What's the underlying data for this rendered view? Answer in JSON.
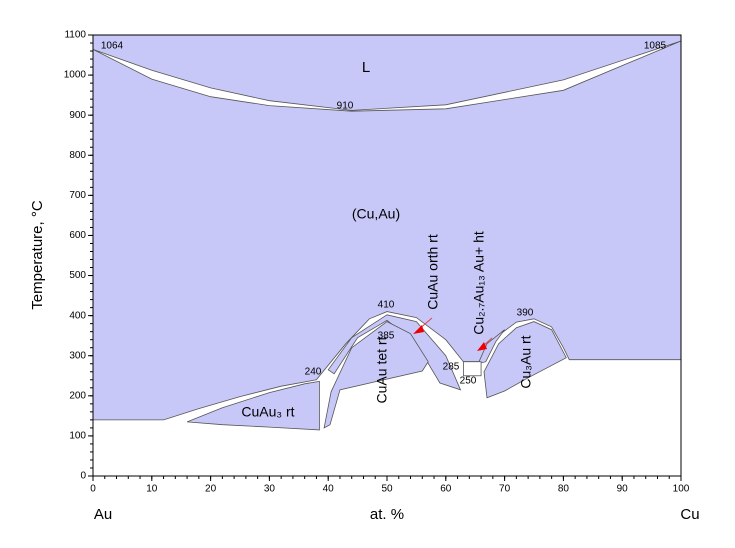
{
  "chart_data": {
    "type": "phase-diagram",
    "xlabel": "at. %",
    "ylabel": "Temperature, °C",
    "left_element": "Au",
    "right_element": "Cu",
    "xlim": [
      0,
      100
    ],
    "xticks": [
      0,
      10,
      20,
      30,
      40,
      50,
      60,
      70,
      80,
      90,
      100
    ],
    "ylim": [
      0,
      1100
    ],
    "yticks": [
      0,
      100,
      200,
      300,
      400,
      500,
      600,
      700,
      800,
      900,
      1000,
      1100
    ],
    "color": "#c8c8f8",
    "annotations": [
      "L",
      "1064",
      "1085",
      "910",
      "(Cu,Au)",
      "410",
      "385",
      "390",
      "240",
      "285",
      "250",
      "CuAu₃ rt",
      "CuAu tet rt",
      "CuAu orth rt",
      "Cu₂.₇Au₁₃ Au+ ht",
      "Cu₃Au rt"
    ]
  }
}
